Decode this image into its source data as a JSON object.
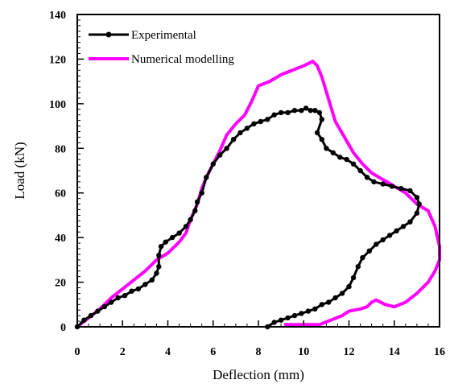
{
  "chart_data": {
    "type": "line",
    "xlabel": "Deflection (mm)",
    "ylabel": "Load (kN)",
    "xlim": [
      0,
      16
    ],
    "ylim": [
      0,
      140
    ],
    "xticks": [
      "0",
      "2",
      "4",
      "6",
      "8",
      "10",
      "12",
      "14",
      "16"
    ],
    "yticks": [
      "0",
      "20",
      "40",
      "60",
      "80",
      "100",
      "120",
      "140"
    ],
    "grid": false,
    "legend_position": "top-left",
    "series": [
      {
        "name": "Experimental",
        "color": "#000000",
        "marker": "circle",
        "x": [
          0,
          0.3,
          0.6,
          0.9,
          1.2,
          1.5,
          1.8,
          2.1,
          2.4,
          2.7,
          3.0,
          3.3,
          3.5,
          3.6,
          3.6,
          3.7,
          3.9,
          4.2,
          4.5,
          4.8,
          5.0,
          5.2,
          5.3,
          5.5,
          5.7,
          6.0,
          6.3,
          6.6,
          6.9,
          7.2,
          7.5,
          7.8,
          8.1,
          8.4,
          8.7,
          9.0,
          9.3,
          9.6,
          9.9,
          10.1,
          10.3,
          10.5,
          10.7,
          10.8,
          10.6,
          10.8,
          11.0,
          11.3,
          11.6,
          11.9,
          12.2,
          12.5,
          12.8,
          13.1,
          13.5,
          13.9,
          14.3,
          14.7,
          15.0,
          15.1,
          15.0,
          14.7,
          14.4,
          14.1,
          13.8,
          13.5,
          13.2,
          12.9,
          12.6,
          12.4,
          12.2,
          12.0,
          11.7,
          11.4,
          11.1,
          10.8,
          10.5,
          10.2,
          9.9,
          9.6,
          9.3,
          9.0,
          8.7,
          8.4
        ],
        "y": [
          0,
          3,
          5,
          7,
          9,
          11,
          13,
          14,
          16,
          17,
          19,
          21,
          24,
          27,
          32,
          36,
          38,
          40,
          42,
          45,
          48,
          52,
          56,
          60,
          67,
          73,
          77,
          80,
          84,
          87,
          89,
          91,
          92,
          93,
          95,
          96,
          96,
          97,
          97,
          98,
          97,
          97,
          96,
          93,
          87,
          84,
          80,
          78,
          76,
          75,
          73,
          70,
          67,
          65,
          64,
          63,
          62,
          61,
          58,
          55,
          51,
          47,
          45,
          43,
          41,
          39,
          37,
          34,
          31,
          27,
          22,
          18,
          15,
          13,
          11,
          10,
          8,
          7,
          6,
          5,
          4,
          3,
          2,
          0
        ]
      },
      {
        "name": "Numerical modelling",
        "color": "#ff00ff",
        "x": [
          0,
          0.5,
          1.0,
          1.5,
          2.0,
          2.5,
          3.0,
          3.5,
          4.0,
          4.5,
          4.8,
          5.0,
          5.3,
          5.5,
          5.7,
          6.0,
          6.3,
          6.6,
          7.0,
          7.4,
          7.7,
          8.0,
          8.5,
          9.0,
          9.5,
          10.0,
          10.4,
          10.6,
          10.8,
          11.1,
          11.4,
          11.8,
          12.2,
          12.6,
          13.0,
          13.5,
          14.0,
          14.5,
          15.0,
          15.5,
          15.8,
          16.0,
          16.0,
          15.8,
          15.5,
          15.0,
          14.5,
          14.0,
          13.6,
          13.2,
          13.0,
          12.8,
          12.5,
          12.0,
          11.7,
          11.2,
          10.7,
          10.0,
          9.5,
          9.2
        ],
        "y": [
          0,
          4,
          8,
          13,
          17,
          21,
          25,
          30,
          33,
          38,
          42,
          48,
          55,
          62,
          67,
          73,
          79,
          86,
          91,
          95,
          101,
          108,
          110,
          113,
          115,
          117,
          119,
          117,
          112,
          102,
          92,
          85,
          78,
          73,
          69,
          66,
          63,
          60,
          55,
          52,
          45,
          36,
          30,
          25,
          20,
          15,
          11,
          9,
          10,
          12,
          11,
          9,
          8,
          7,
          5,
          3,
          1,
          1,
          1,
          1
        ]
      }
    ]
  }
}
